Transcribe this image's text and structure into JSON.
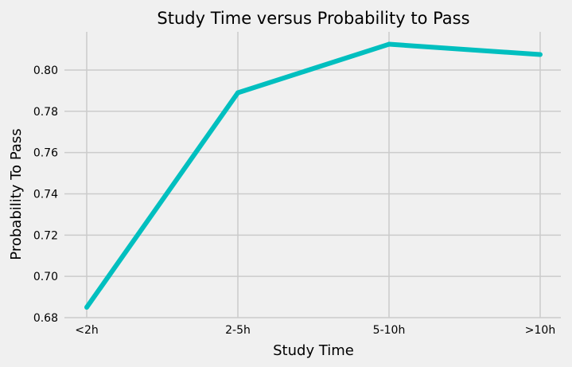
{
  "chart_data": {
    "type": "line",
    "title": "Study Time versus Probability to Pass",
    "xlabel": "Study Time",
    "ylabel": "Probability To Pass",
    "categories": [
      "<2h",
      "2-5h",
      "5-10h",
      ">10h"
    ],
    "series": [
      {
        "values": [
          0.685,
          0.789,
          0.8125,
          0.8075
        ],
        "color": "#00bfbf"
      }
    ],
    "ylim": [
      0.68,
      0.8185
    ],
    "yticks": [
      0.68,
      0.7,
      0.72,
      0.74,
      0.76,
      0.78,
      0.8
    ],
    "ytick_labels": [
      "0.68",
      "0.70",
      "0.72",
      "0.74",
      "0.76",
      "0.78",
      "0.80"
    ],
    "grid": true,
    "style": "fivethirtyeight"
  }
}
